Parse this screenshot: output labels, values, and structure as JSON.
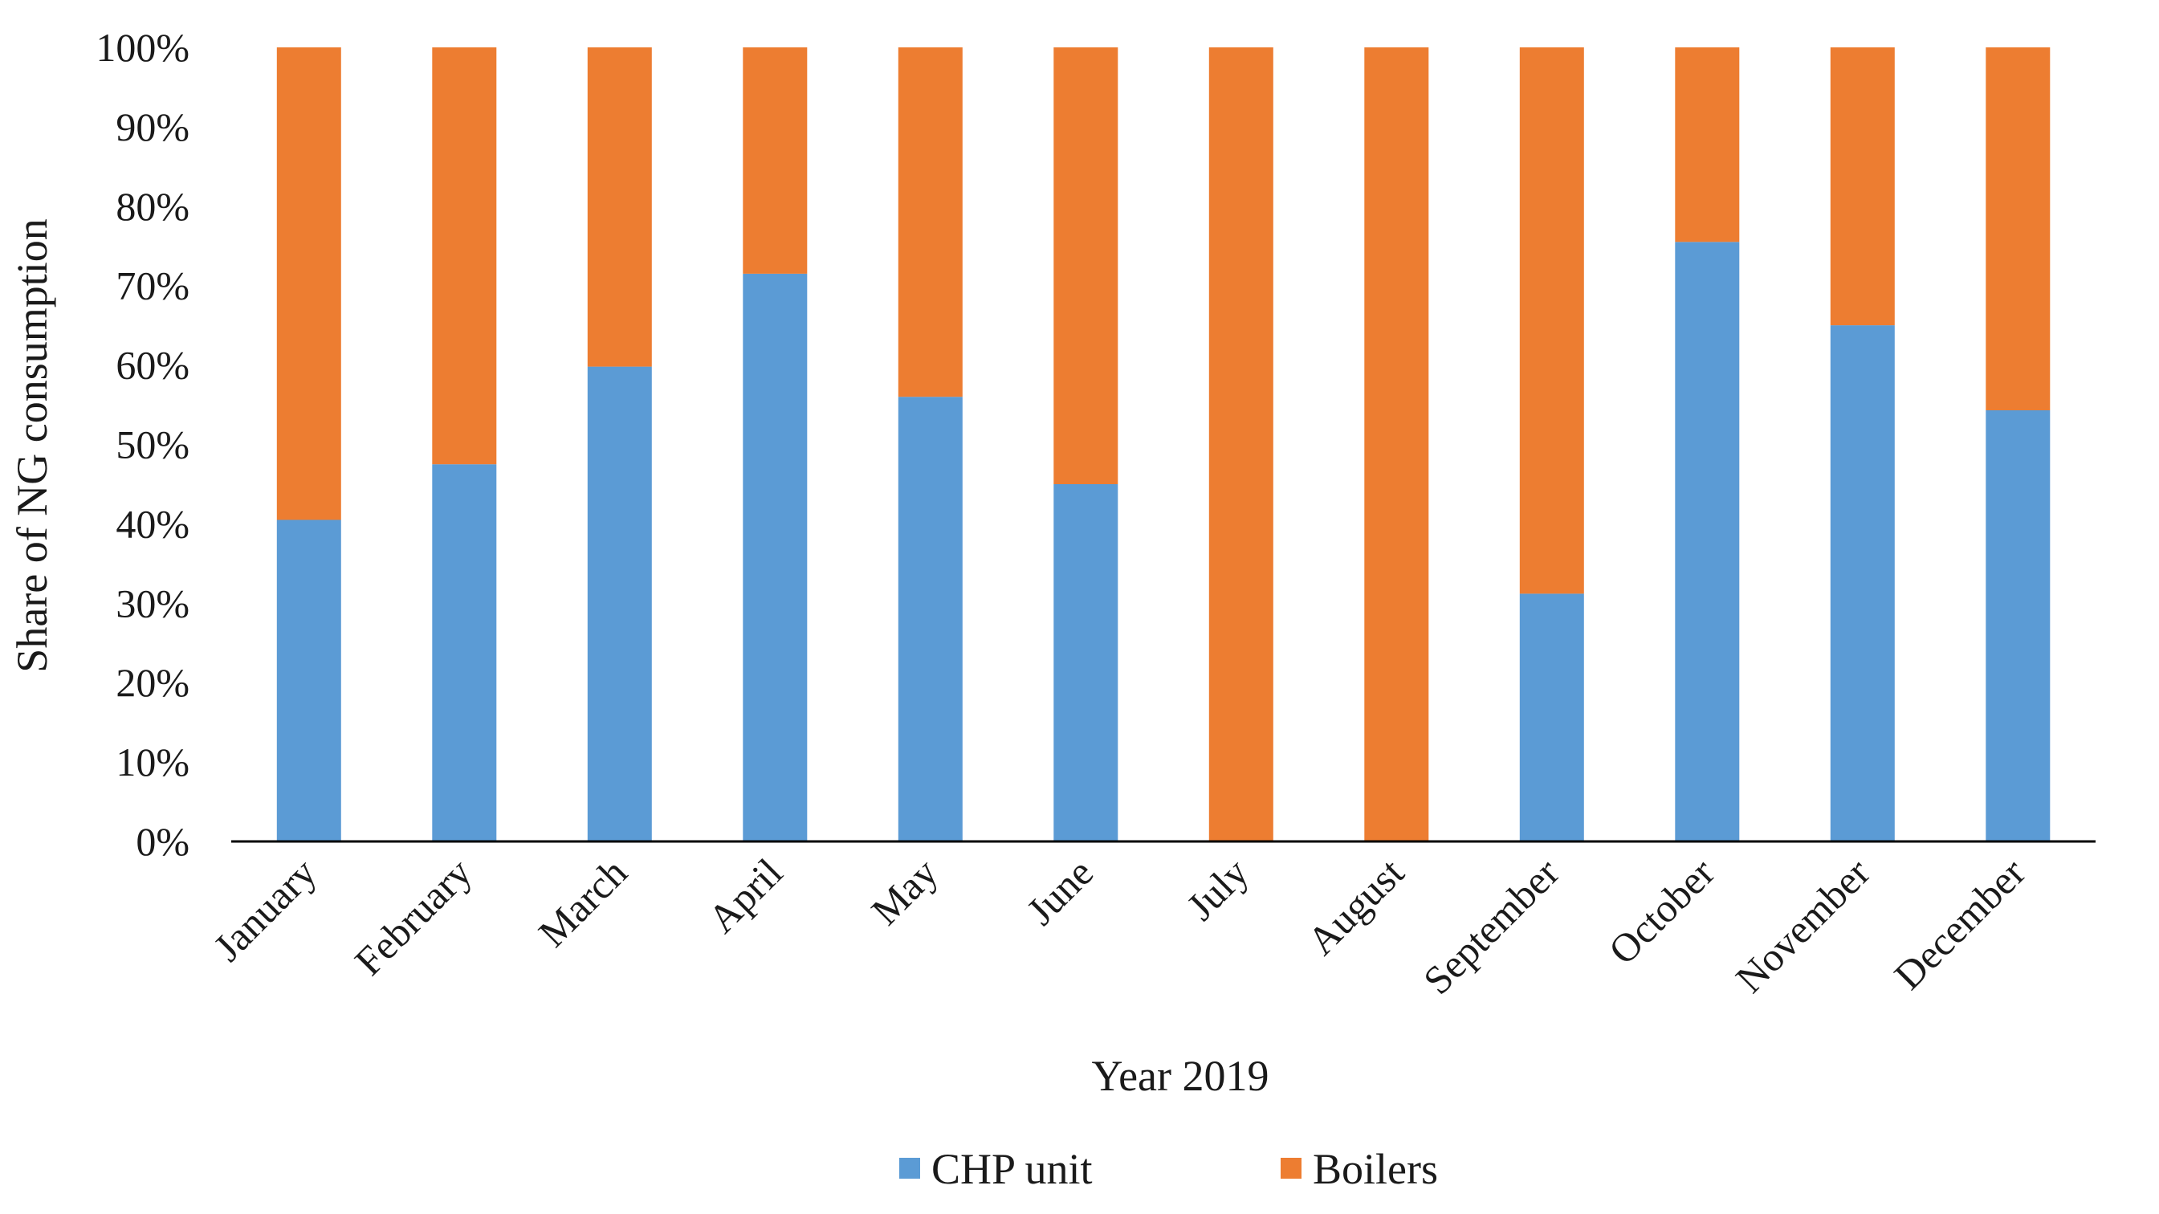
{
  "chart_data": {
    "type": "bar",
    "stacked": true,
    "percent_stacked": true,
    "title": "",
    "xlabel": "Year 2019",
    "ylabel": "Share of NG consumption",
    "ylim": [
      0,
      100
    ],
    "y_ticks": [
      "0%",
      "10%",
      "20%",
      "30%",
      "40%",
      "50%",
      "60%",
      "70%",
      "80%",
      "90%",
      "100%"
    ],
    "categories": [
      "January",
      "February",
      "March",
      "April",
      "May",
      "June",
      "July",
      "August",
      "September",
      "October",
      "November",
      "December"
    ],
    "series": [
      {
        "name": "CHP unit",
        "color": "#5b9bd5",
        "values": [
          40.5,
          47.5,
          59.8,
          71.5,
          56,
          45,
          0,
          0,
          31.2,
          75.5,
          65,
          54.3
        ]
      },
      {
        "name": "Boilers",
        "color": "#ed7d31",
        "values": [
          59.5,
          52.5,
          40.2,
          28.5,
          44,
          55,
          100,
          100,
          68.8,
          24.5,
          35,
          45.7
        ]
      }
    ],
    "grid": false,
    "legend_position": "bottom"
  }
}
